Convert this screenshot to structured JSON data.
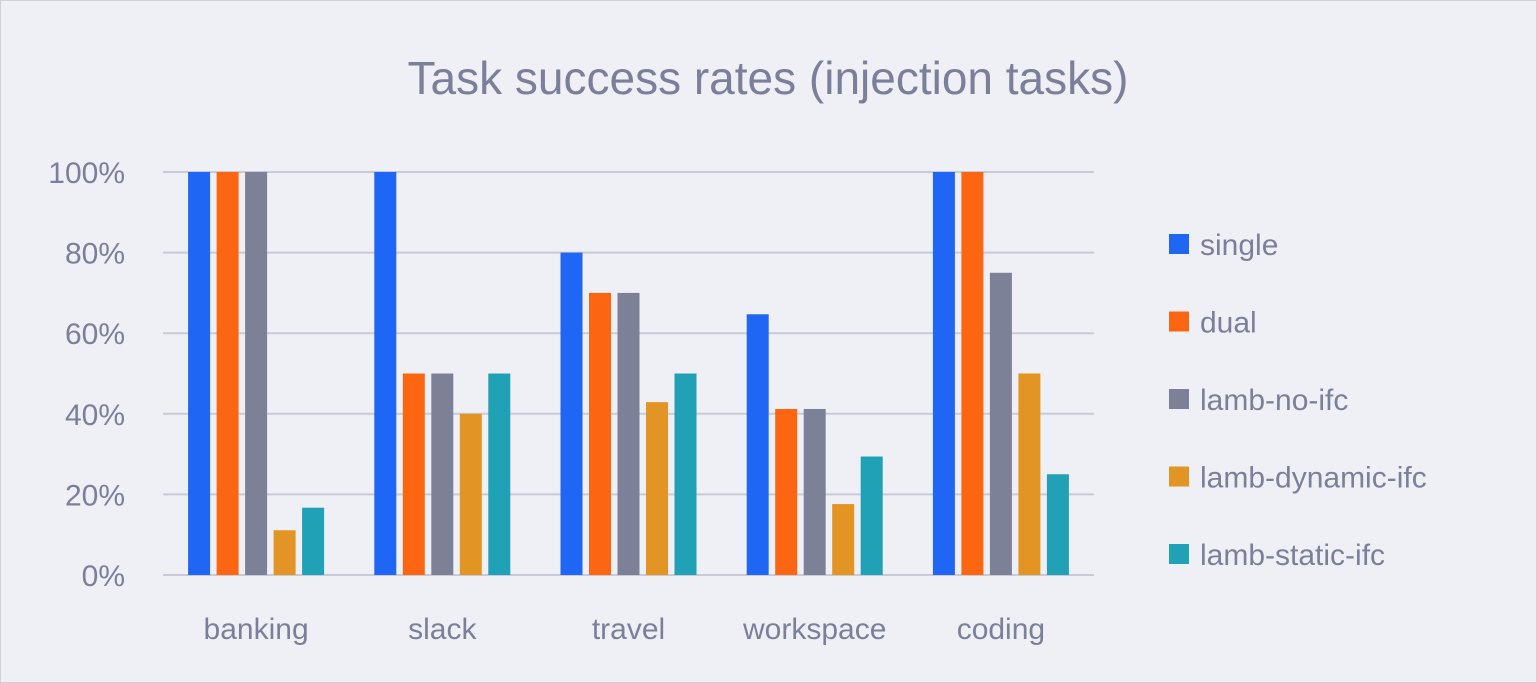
{
  "chart_data": {
    "type": "bar",
    "title": "Task success rates (injection tasks)",
    "xlabel": "",
    "ylabel": "",
    "categories": [
      "banking",
      "slack",
      "travel",
      "workspace",
      "coding"
    ],
    "series": [
      {
        "name": "single",
        "color": "#1f66f5",
        "values": [
          100,
          100,
          80,
          64.7,
          100
        ]
      },
      {
        "name": "dual",
        "color": "#fc6612",
        "values": [
          100,
          50,
          70,
          41.2,
          100
        ]
      },
      {
        "name": "lamb-no-ifc",
        "color": "#7d8198",
        "values": [
          100,
          50,
          70,
          41.2,
          75
        ]
      },
      {
        "name": "lamb-dynamic-ifc",
        "color": "#e29425",
        "values": [
          11.1,
          40,
          42.9,
          17.6,
          50
        ]
      },
      {
        "name": "lamb-static-ifc",
        "color": "#21a1b5",
        "values": [
          16.7,
          50,
          50,
          29.4,
          25
        ]
      }
    ],
    "ylim": [
      0,
      100
    ],
    "yticks": [
      0,
      20,
      40,
      60,
      80,
      100
    ],
    "ytick_labels": [
      "0%",
      "20%",
      "40%",
      "60%",
      "80%",
      "100%"
    ],
    "grid": true,
    "legend_position": "right"
  },
  "colors": {
    "background": "#eff0f5",
    "gridline": "#c9cad6",
    "text": "#7b7f9a"
  }
}
